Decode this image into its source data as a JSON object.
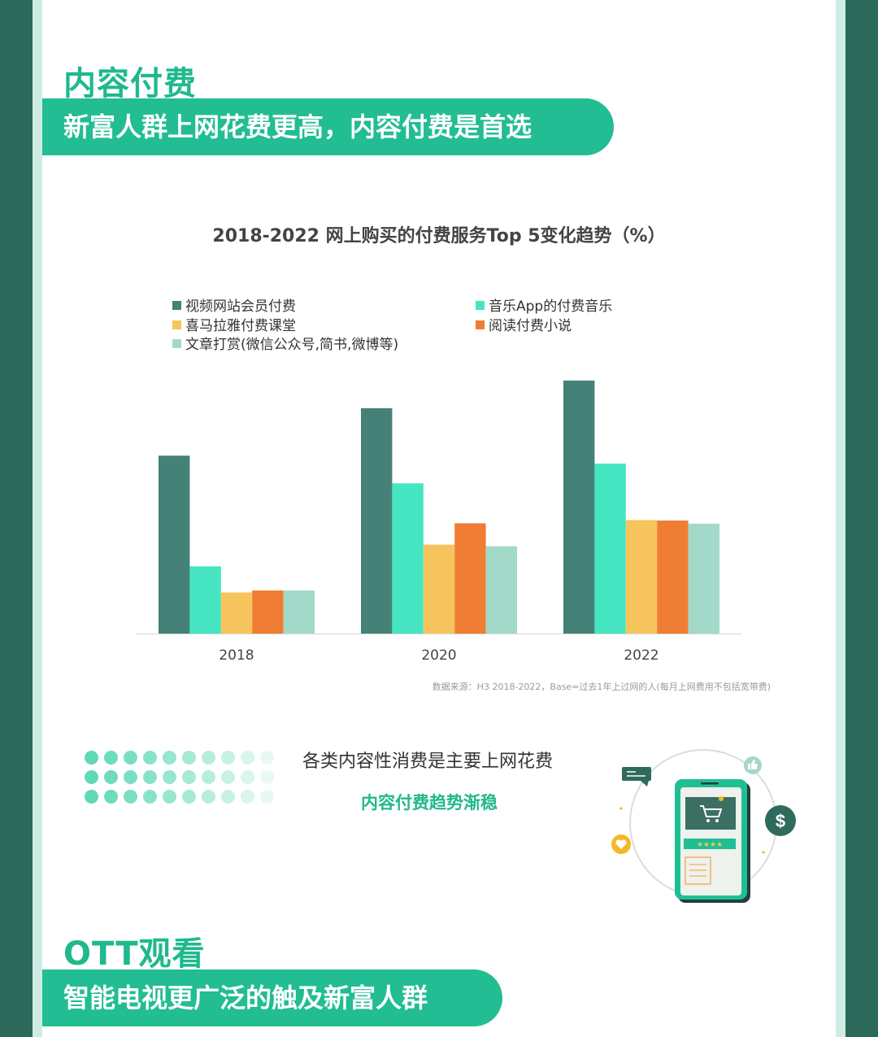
{
  "section1": {
    "title": "内容付费",
    "banner": "新富人群上网花费更高，内容付费是首选"
  },
  "chart_data": {
    "type": "bar",
    "title": "2018-2022 网上购买的付费服务Top 5变化趋势（%）",
    "categories": [
      "2018",
      "2020",
      "2022"
    ],
    "series": [
      {
        "name": "视频网站会员付费",
        "color": "#458176",
        "values": [
          45,
          57,
          64
        ]
      },
      {
        "name": "音乐App的付费音乐",
        "color": "#46e5c2",
        "values": [
          17,
          38,
          43
        ]
      },
      {
        "name": "喜马拉雅付费课堂",
        "color": "#f6c45c",
        "values": [
          10.4,
          22.5,
          28.7
        ]
      },
      {
        "name": "阅读付费小说",
        "color": "#ef7d33",
        "values": [
          10.9,
          27.9,
          28.6
        ]
      },
      {
        "name": "文章打赏(微信公众号,简书,微博等)",
        "color": "#a3d9c8",
        "values": [
          10.9,
          22.1,
          27.8
        ]
      }
    ],
    "ylim": [
      0,
      72
    ],
    "grid": false,
    "legend_position": "top",
    "xlabel": "",
    "ylabel": ""
  },
  "source_note": "数据来源：H3 2018-2022，Base=过去1年上过网的人(每月上网费用不包括宽带费)",
  "callout": {
    "line1": "各类内容性消费是主要上网花费",
    "line2": "内容付费趋势渐稳"
  },
  "illustration": {
    "icons": [
      "thumbs-up-icon",
      "dollar-icon",
      "heart-icon",
      "chat-bubble-icon",
      "shopping-cart-icon",
      "rating-stars-icon",
      "document-icon"
    ]
  },
  "section2": {
    "title": "OTT观看",
    "banner": "智能电视更广泛的触及新富人群"
  }
}
